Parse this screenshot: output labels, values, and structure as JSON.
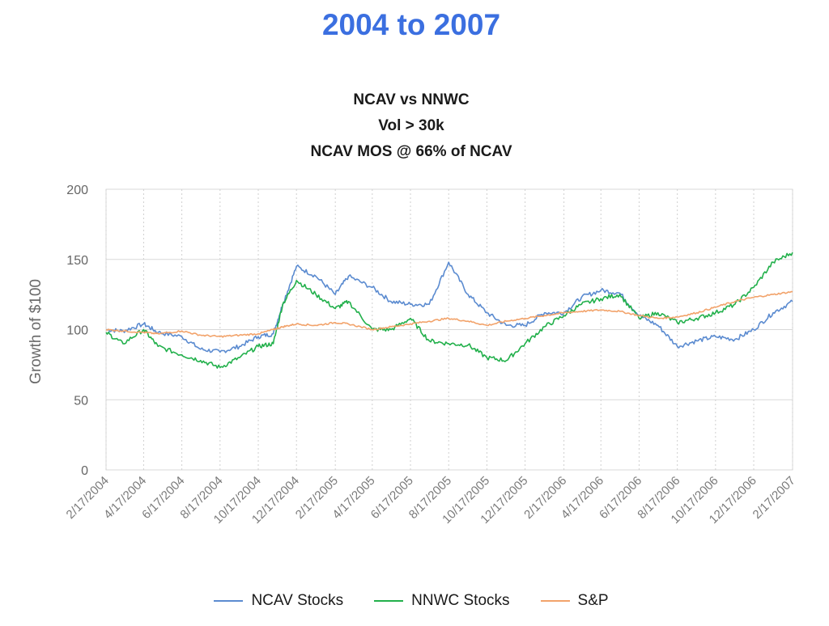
{
  "heading": "2004 to 2007",
  "chart_data": {
    "type": "line",
    "title_lines": [
      "NCAV vs NNWC",
      "Vol > 30k",
      "NCAV MOS @ 66% of NCAV"
    ],
    "ylabel": "Growth of $100",
    "xlabel": "",
    "ylim": [
      0,
      200
    ],
    "yticks": [
      0,
      50,
      100,
      150,
      200
    ],
    "x_tick_labels": [
      "2/17/2004",
      "4/17/2004",
      "6/17/2004",
      "8/17/2004",
      "10/17/2004",
      "12/17/2004",
      "2/17/2005",
      "4/17/2005",
      "6/17/2005",
      "8/17/2005",
      "10/17/2005",
      "12/17/2005",
      "2/17/2006",
      "4/17/2006",
      "6/17/2006",
      "8/17/2006",
      "10/17/2006",
      "12/17/2006",
      "2/17/2007"
    ],
    "grid": true,
    "legend_position": "bottom",
    "series": [
      {
        "name": "NCAV Stocks",
        "color": "#5b8bd0",
        "x": [
          "2/17/2004",
          "3/15/2004",
          "4/17/2004",
          "5/10/2004",
          "6/17/2004",
          "7/17/2004",
          "8/17/2004",
          "9/17/2004",
          "10/17/2004",
          "11/10/2004",
          "11/25/2004",
          "12/17/2004",
          "1/17/2005",
          "2/17/2005",
          "3/10/2005",
          "4/17/2005",
          "5/17/2005",
          "6/17/2005",
          "7/17/2005",
          "8/17/2005",
          "9/17/2005",
          "10/17/2005",
          "11/17/2005",
          "12/17/2005",
          "1/17/2006",
          "2/17/2006",
          "3/17/2006",
          "4/17/2006",
          "5/17/2006",
          "6/17/2006",
          "7/17/2006",
          "8/17/2006",
          "9/17/2006",
          "10/17/2006",
          "11/17/2006",
          "12/17/2006",
          "1/17/2007",
          "2/17/2007"
        ],
        "values": [
          100,
          99,
          104,
          98,
          95,
          86,
          84,
          88,
          95,
          97,
          118,
          145,
          138,
          125,
          138,
          130,
          120,
          118,
          118,
          148,
          125,
          112,
          103,
          103,
          112,
          112,
          123,
          128,
          126,
          110,
          103,
          88,
          92,
          95,
          93,
          100,
          112,
          120
        ]
      },
      {
        "name": "NNWC Stocks",
        "color": "#22b04b",
        "x": [
          "2/17/2004",
          "3/15/2004",
          "4/17/2004",
          "5/10/2004",
          "6/17/2004",
          "7/17/2004",
          "8/17/2004",
          "9/17/2004",
          "10/17/2004",
          "11/10/2004",
          "11/25/2004",
          "12/17/2004",
          "1/17/2005",
          "2/17/2005",
          "3/10/2005",
          "4/17/2005",
          "5/17/2005",
          "6/17/2005",
          "7/17/2005",
          "8/17/2005",
          "9/17/2005",
          "10/17/2005",
          "11/17/2005",
          "12/17/2005",
          "1/17/2006",
          "2/17/2006",
          "3/17/2006",
          "4/17/2006",
          "5/17/2006",
          "6/17/2006",
          "7/17/2006",
          "8/17/2006",
          "9/17/2006",
          "10/17/2006",
          "11/17/2006",
          "12/17/2006",
          "1/17/2007",
          "2/17/2007"
        ],
        "values": [
          98,
          90,
          100,
          88,
          82,
          78,
          73,
          80,
          88,
          90,
          118,
          135,
          125,
          115,
          120,
          100,
          100,
          108,
          92,
          90,
          89,
          80,
          78,
          90,
          102,
          110,
          118,
          122,
          125,
          108,
          112,
          105,
          108,
          112,
          118,
          130,
          148,
          155
        ]
      },
      {
        "name": "S&P",
        "color": "#f2a36b",
        "x": [
          "2/17/2004",
          "3/15/2004",
          "4/17/2004",
          "5/10/2004",
          "6/17/2004",
          "7/17/2004",
          "8/17/2004",
          "9/17/2004",
          "10/17/2004",
          "11/10/2004",
          "11/25/2004",
          "12/17/2004",
          "1/17/2005",
          "2/17/2005",
          "3/10/2005",
          "4/17/2005",
          "5/17/2005",
          "6/17/2005",
          "7/17/2005",
          "8/17/2005",
          "9/17/2005",
          "10/17/2005",
          "11/17/2005",
          "12/17/2005",
          "1/17/2006",
          "2/17/2006",
          "3/17/2006",
          "4/17/2006",
          "5/17/2006",
          "6/17/2006",
          "7/17/2006",
          "8/17/2006",
          "9/17/2006",
          "10/17/2006",
          "11/17/2006",
          "12/17/2006",
          "1/17/2007",
          "2/17/2007"
        ],
        "values": [
          100,
          99,
          98,
          97,
          99,
          96,
          95,
          96,
          97,
          100,
          102,
          104,
          103,
          105,
          104,
          100,
          102,
          104,
          106,
          108,
          106,
          103,
          106,
          108,
          110,
          112,
          113,
          114,
          113,
          110,
          108,
          109,
          112,
          116,
          120,
          123,
          125,
          127
        ]
      }
    ]
  }
}
